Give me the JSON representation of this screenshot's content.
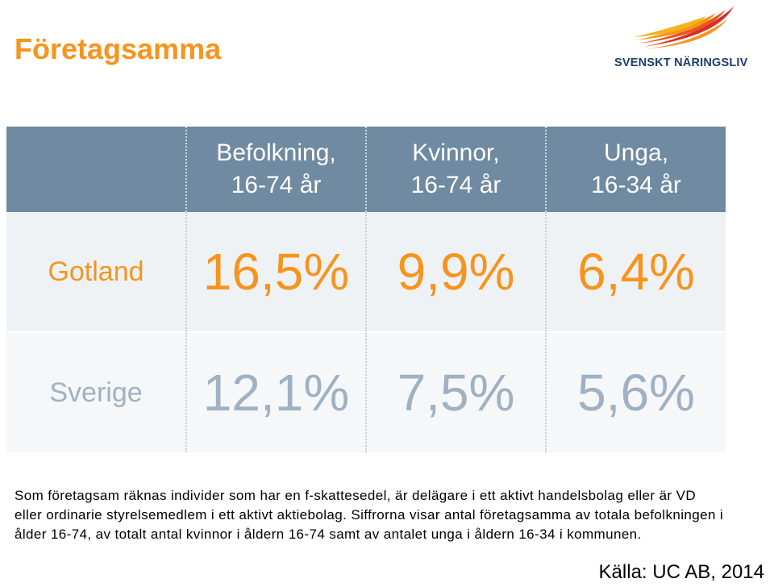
{
  "title": "Företagsamma",
  "logo": {
    "text": "SVENSKT NÄRINGSLIV",
    "colors": [
      "#f7b21a",
      "#f7941d",
      "#e8561c",
      "#d6302a"
    ]
  },
  "table": {
    "columns": [
      {
        "line1": "Befolkning,",
        "line2": "16-74 år"
      },
      {
        "line1": "Kvinnor,",
        "line2": "16-74 år"
      },
      {
        "line1": "Unga,",
        "line2": "16-34 år"
      }
    ],
    "rows": [
      {
        "label": "Gotland",
        "values": [
          "16,5%",
          "9,9%",
          "6,4%"
        ],
        "color": "#f7941d"
      },
      {
        "label": "Sverige",
        "values": [
          "12,1%",
          "7,5%",
          "5,6%"
        ],
        "color": "#9fb1c2"
      }
    ]
  },
  "footnote": "Som företagsam räknas individer som har en f-skattesedel, är delägare i ett aktivt handelsbolag eller är VD eller ordinarie styrelsemedlem i ett aktivt aktiebolag. Siffrorna visar antal företagsamma av totala befolkningen i ålder 16-74, av totalt antal kvinnor i åldern 16-74 samt av antalet unga i åldern 16-34 i kommunen.",
  "source": "Källa: UC AB, 2014",
  "colors": {
    "accent": "#f7941d",
    "header_bg": "#6f8aa1",
    "muted": "#9fb1c2",
    "brand_navy": "#1c3e6e"
  }
}
